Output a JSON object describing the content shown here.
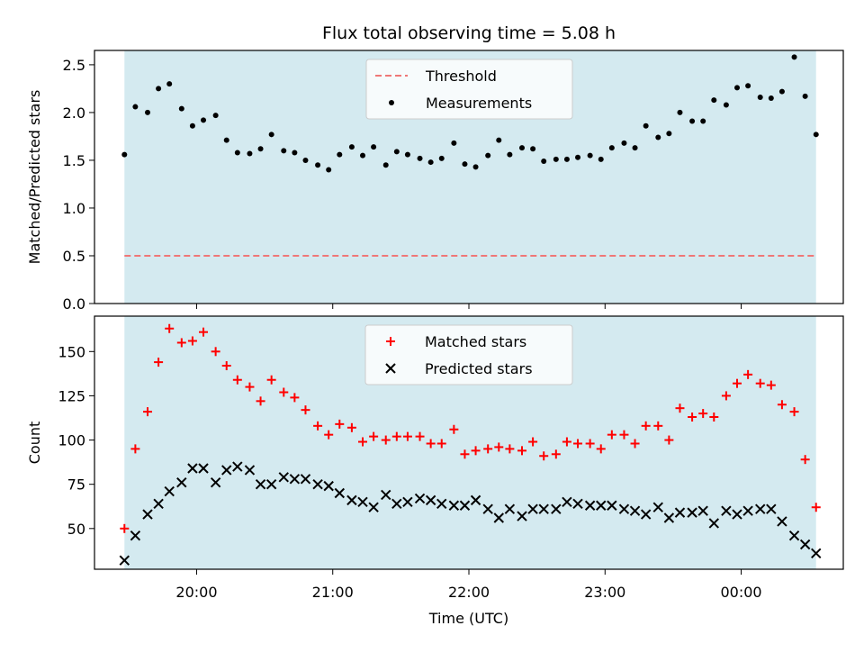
{
  "chart_data": {
    "type": "scatter",
    "title": "Flux total observing time = 5.08 h",
    "xlabel": "Time (UTC)",
    "x_range_hours": [
      19.25,
      24.75
    ],
    "observing_window_hours": [
      19.47,
      24.55
    ],
    "shade_color": "#d4eaf0",
    "xticks": [
      {
        "value": 20,
        "label": "20:00"
      },
      {
        "value": 21,
        "label": "21:00"
      },
      {
        "value": 22,
        "label": "22:00"
      },
      {
        "value": 23,
        "label": "23:00"
      },
      {
        "value": 24,
        "label": "00:00"
      }
    ],
    "panels": [
      {
        "ylabel": "Matched/Predicted stars",
        "ylim": [
          0,
          2.65
        ],
        "yticks": [
          "0.0",
          "0.5",
          "1.0",
          "1.5",
          "2.0",
          "2.5"
        ],
        "threshold": 0.5,
        "legend": [
          "Threshold",
          "Measurements"
        ],
        "series": [
          {
            "name": "Measurements",
            "color": "#000000",
            "x": [
              19.47,
              19.55,
              19.64,
              19.72,
              19.8,
              19.89,
              19.97,
              20.05,
              20.14,
              20.22,
              20.3,
              20.39,
              20.47,
              20.55,
              20.64,
              20.72,
              20.8,
              20.89,
              20.97,
              21.05,
              21.14,
              21.22,
              21.3,
              21.39,
              21.47,
              21.55,
              21.64,
              21.72,
              21.8,
              21.89,
              21.97,
              22.05,
              22.14,
              22.22,
              22.3,
              22.39,
              22.47,
              22.55,
              22.64,
              22.72,
              22.8,
              22.89,
              22.97,
              23.05,
              23.14,
              23.22,
              23.3,
              23.39,
              23.47,
              23.55,
              23.64,
              23.72,
              23.8,
              23.89,
              23.97,
              24.05,
              24.14,
              24.22,
              24.3,
              24.39,
              24.47,
              24.55
            ],
            "values": [
              1.56,
              2.06,
              2.0,
              2.25,
              2.3,
              2.04,
              1.86,
              1.92,
              1.97,
              1.71,
              1.58,
              1.57,
              1.62,
              1.77,
              1.6,
              1.58,
              1.5,
              1.45,
              1.4,
              1.56,
              1.64,
              1.55,
              1.64,
              1.45,
              1.59,
              1.56,
              1.52,
              1.48,
              1.52,
              1.68,
              1.46,
              1.43,
              1.55,
              1.71,
              1.56,
              1.63,
              1.62,
              1.49,
              1.51,
              1.51,
              1.53,
              1.55,
              1.51,
              1.63,
              1.68,
              1.63,
              1.86,
              1.74,
              1.78,
              2.0,
              1.91,
              1.91,
              2.13,
              2.08,
              2.26,
              2.28,
              2.16,
              2.15,
              2.22,
              2.58,
              2.17,
              1.77
            ]
          }
        ]
      },
      {
        "ylabel": "Count",
        "ylim": [
          27,
          170
        ],
        "yticks": [
          "50",
          "75",
          "100",
          "125",
          "150"
        ],
        "legend": [
          "Matched stars",
          "Predicted stars"
        ],
        "series": [
          {
            "name": "Matched stars",
            "color": "#ff0000",
            "x": [
              19.47,
              19.55,
              19.64,
              19.72,
              19.8,
              19.89,
              19.97,
              20.05,
              20.14,
              20.22,
              20.3,
              20.39,
              20.47,
              20.55,
              20.64,
              20.72,
              20.8,
              20.89,
              20.97,
              21.05,
              21.14,
              21.22,
              21.3,
              21.39,
              21.47,
              21.55,
              21.64,
              21.72,
              21.8,
              21.89,
              21.97,
              22.05,
              22.14,
              22.22,
              22.3,
              22.39,
              22.47,
              22.55,
              22.64,
              22.72,
              22.8,
              22.89,
              22.97,
              23.05,
              23.14,
              23.22,
              23.3,
              23.39,
              23.47,
              23.55,
              23.64,
              23.72,
              23.8,
              23.89,
              23.97,
              24.05,
              24.14,
              24.22,
              24.3,
              24.39,
              24.47,
              24.55
            ],
            "values": [
              50,
              95,
              116,
              144,
              163,
              155,
              156,
              161,
              150,
              142,
              134,
              130,
              122,
              134,
              127,
              124,
              117,
              108,
              103,
              109,
              107,
              99,
              102,
              100,
              102,
              102,
              102,
              98,
              98,
              106,
              92,
              94,
              95,
              96,
              95,
              94,
              99,
              91,
              92,
              99,
              98,
              98,
              95,
              103,
              103,
              98,
              108,
              108,
              100,
              118,
              113,
              115,
              113,
              125,
              132,
              137,
              132,
              131,
              120,
              116,
              89,
              62
            ]
          },
          {
            "name": "Predicted stars",
            "color": "#000000",
            "x": [
              19.47,
              19.55,
              19.64,
              19.72,
              19.8,
              19.89,
              19.97,
              20.05,
              20.14,
              20.22,
              20.3,
              20.39,
              20.47,
              20.55,
              20.64,
              20.72,
              20.8,
              20.89,
              20.97,
              21.05,
              21.14,
              21.22,
              21.3,
              21.39,
              21.47,
              21.55,
              21.64,
              21.72,
              21.8,
              21.89,
              21.97,
              22.05,
              22.14,
              22.22,
              22.3,
              22.39,
              22.47,
              22.55,
              22.64,
              22.72,
              22.8,
              22.89,
              22.97,
              23.05,
              23.14,
              23.22,
              23.3,
              23.39,
              23.47,
              23.55,
              23.64,
              23.72,
              23.8,
              23.89,
              23.97,
              24.05,
              24.14,
              24.22,
              24.3,
              24.39,
              24.47,
              24.55
            ],
            "values": [
              32,
              46,
              58,
              64,
              71,
              76,
              84,
              84,
              76,
              83,
              85,
              83,
              75,
              75,
              79,
              78,
              78,
              75,
              74,
              70,
              66,
              65,
              62,
              69,
              64,
              65,
              67,
              66,
              64,
              63,
              63,
              66,
              61,
              56,
              61,
              57,
              61,
              61,
              61,
              65,
              64,
              63,
              63,
              63,
              61,
              60,
              58,
              62,
              56,
              59,
              59,
              60,
              53,
              60,
              58,
              60,
              61,
              61,
              54,
              46,
              41,
              36
            ]
          }
        ]
      }
    ]
  }
}
